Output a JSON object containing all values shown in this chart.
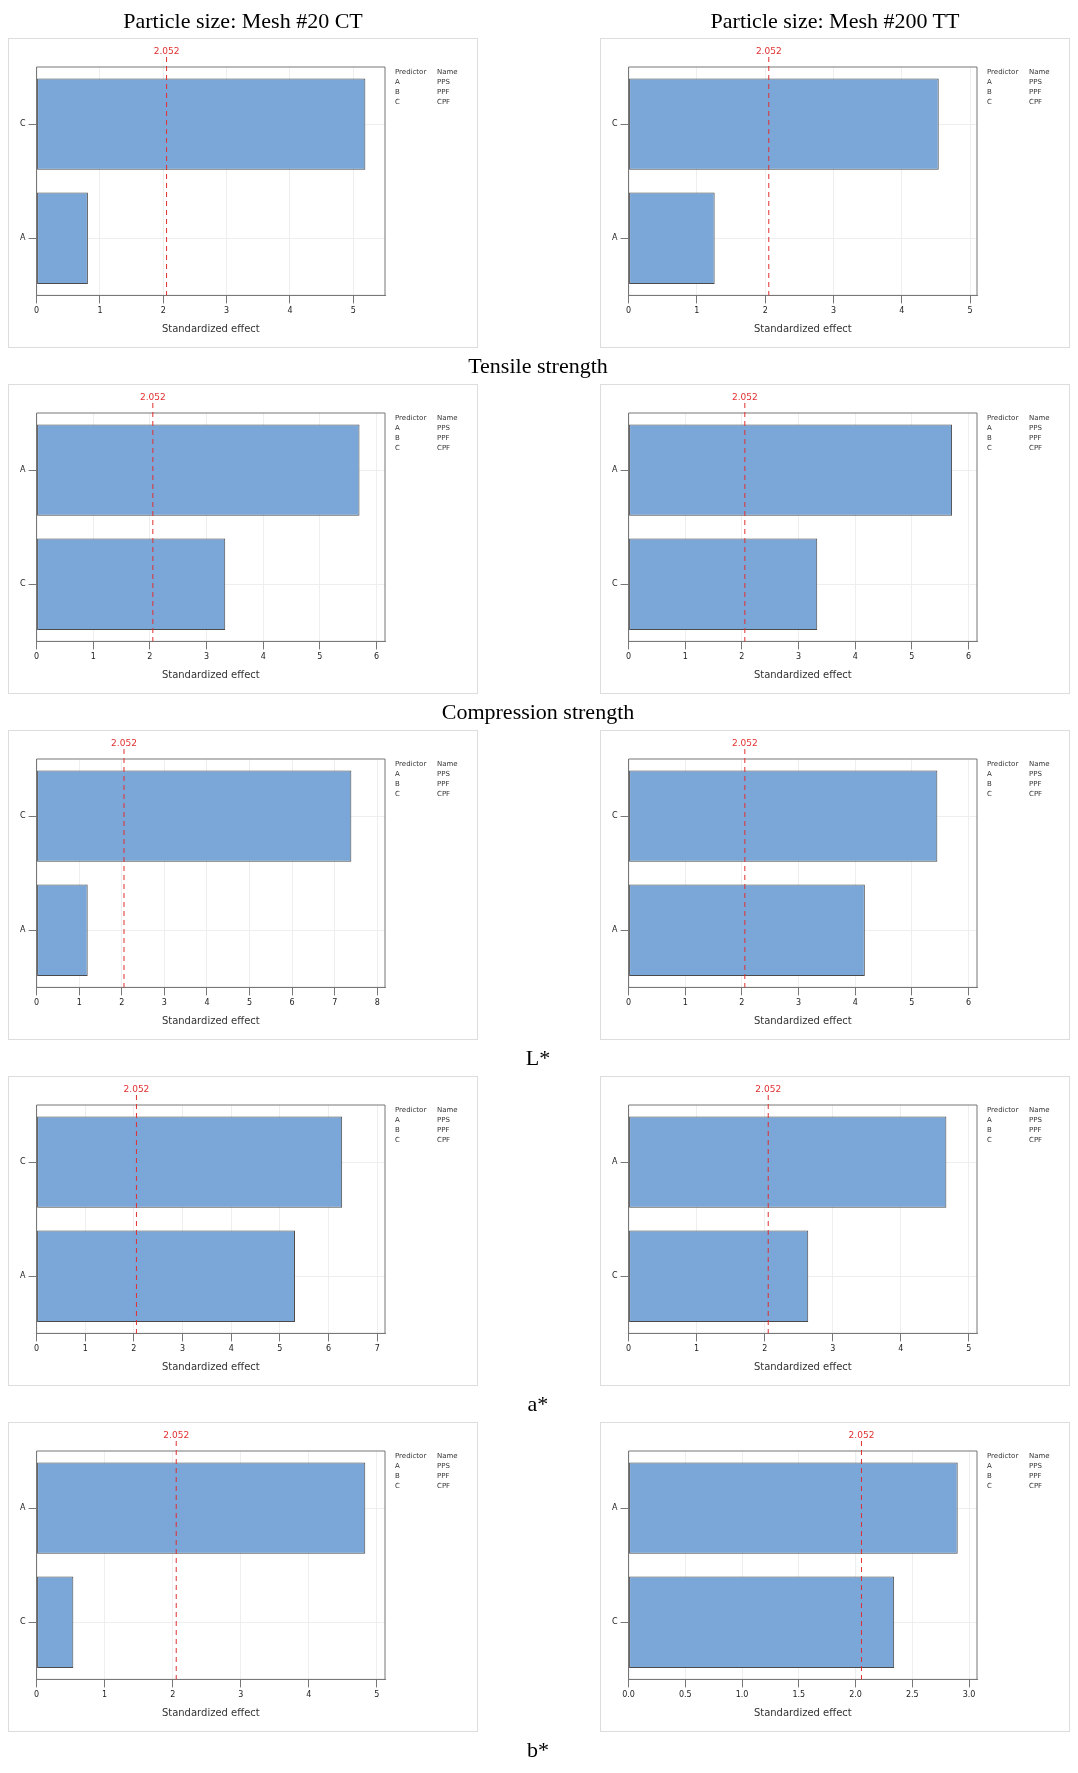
{
  "chart_data": [
    {
      "type": "bar",
      "orientation": "horizontal",
      "title": "Particle size: Mesh #20 CT",
      "categories": [
        "C",
        "A"
      ],
      "values": [
        5.19,
        0.81
      ],
      "color": "#7ba7d8",
      "xlim": [
        0,
        5.5
      ],
      "xticks": [
        0,
        1,
        2,
        3,
        4,
        5
      ],
      "xlabel": "Standardized effect",
      "grid": true,
      "ref_lines": [
        {
          "axis": "x",
          "value": 2.052,
          "label": "2.052",
          "color": "#e03030",
          "line_style": "dashed"
        }
      ],
      "annotations": [
        "Predictor Name",
        "A PPS",
        "B PPF",
        "C CPF",
        "Tensile strength"
      ]
    },
    {
      "type": "bar",
      "orientation": "horizontal",
      "title": "Particle size: Mesh #200 TT",
      "categories": [
        "C",
        "A"
      ],
      "values": [
        4.54,
        1.26
      ],
      "color": "#7ba7d8",
      "xlim": [
        0,
        5.1
      ],
      "xticks": [
        0,
        1,
        2,
        3,
        4,
        5
      ],
      "xlabel": "Standardized effect",
      "grid": true,
      "ref_lines": [
        {
          "axis": "x",
          "value": 2.052,
          "label": "2.052",
          "color": "#e03030",
          "line_style": "dashed"
        }
      ],
      "annotations": [
        "Predictor Name",
        "A PPS",
        "B PPF",
        "C CPF"
      ]
    },
    {
      "type": "bar",
      "orientation": "horizontal",
      "categories": [
        "A",
        "C"
      ],
      "values": [
        5.7,
        3.33
      ],
      "color": "#7ba7d8",
      "xlim": [
        0,
        6.15
      ],
      "xticks": [
        0,
        1,
        2,
        3,
        4,
        5,
        6
      ],
      "xlabel": "Standardized effect",
      "grid": true,
      "ref_lines": [
        {
          "axis": "x",
          "value": 2.052,
          "label": "2.052",
          "color": "#e03030",
          "line_style": "dashed"
        }
      ],
      "annotations": [
        "Predictor Name",
        "A PPS",
        "B PPF",
        "C CPF",
        "Compression strength"
      ]
    },
    {
      "type": "bar",
      "orientation": "horizontal",
      "categories": [
        "A",
        "C"
      ],
      "values": [
        5.71,
        3.33
      ],
      "color": "#7ba7d8",
      "xlim": [
        0,
        6.15
      ],
      "xticks": [
        0,
        1,
        2,
        3,
        4,
        5,
        6
      ],
      "xlabel": "Standardized effect",
      "grid": true,
      "ref_lines": [
        {
          "axis": "x",
          "value": 2.052,
          "label": "2.052",
          "color": "#e03030",
          "line_style": "dashed"
        }
      ],
      "annotations": [
        "Predictor Name",
        "A PPS",
        "B PPF",
        "C CPF"
      ]
    },
    {
      "type": "bar",
      "orientation": "horizontal",
      "categories": [
        "C",
        "A"
      ],
      "values": [
        7.39,
        1.2
      ],
      "color": "#7ba7d8",
      "xlim": [
        0,
        8.18
      ],
      "xticks": [
        0,
        1,
        2,
        3,
        4,
        5,
        6,
        7,
        8
      ],
      "xlabel": "Standardized effect",
      "grid": true,
      "ref_lines": [
        {
          "axis": "x",
          "value": 2.052,
          "label": "2.052",
          "color": "#e03030",
          "line_style": "dashed"
        }
      ],
      "annotations": [
        "Predictor Name",
        "A PPS",
        "B PPF",
        "C CPF",
        "L*"
      ]
    },
    {
      "type": "bar",
      "orientation": "horizontal",
      "categories": [
        "C",
        "A"
      ],
      "values": [
        5.45,
        4.17
      ],
      "color": "#7ba7d8",
      "xlim": [
        0,
        6.15
      ],
      "xticks": [
        0,
        1,
        2,
        3,
        4,
        5,
        6
      ],
      "xlabel": "Standardized effect",
      "grid": true,
      "ref_lines": [
        {
          "axis": "x",
          "value": 2.052,
          "label": "2.052",
          "color": "#e03030",
          "line_style": "dashed"
        }
      ],
      "annotations": [
        "Predictor Name",
        "A PPS",
        "B PPF",
        "C CPF"
      ]
    },
    {
      "type": "bar",
      "orientation": "horizontal",
      "categories": [
        "C",
        "A"
      ],
      "values": [
        6.28,
        5.31
      ],
      "color": "#7ba7d8",
      "xlim": [
        0,
        7.16
      ],
      "xticks": [
        0,
        1,
        2,
        3,
        4,
        5,
        6,
        7
      ],
      "xlabel": "Standardized effect",
      "grid": true,
      "ref_lines": [
        {
          "axis": "x",
          "value": 2.052,
          "label": "2.052",
          "color": "#e03030",
          "line_style": "dashed"
        }
      ],
      "annotations": [
        "Predictor Name",
        "A PPS",
        "B PPF",
        "C CPF",
        "a*"
      ]
    },
    {
      "type": "bar",
      "orientation": "horizontal",
      "categories": [
        "A",
        "C"
      ],
      "values": [
        4.67,
        2.64
      ],
      "color": "#7ba7d8",
      "xlim": [
        0,
        5.12
      ],
      "xticks": [
        0,
        1,
        2,
        3,
        4,
        5
      ],
      "xlabel": "Standardized effect",
      "grid": true,
      "ref_lines": [
        {
          "axis": "x",
          "value": 2.052,
          "label": "2.052",
          "color": "#e03030",
          "line_style": "dashed"
        }
      ],
      "annotations": [
        "Predictor Name",
        "A PPS",
        "B PPF",
        "C CPF"
      ]
    },
    {
      "type": "bar",
      "orientation": "horizontal",
      "categories": [
        "A",
        "C"
      ],
      "values": [
        4.83,
        0.54
      ],
      "color": "#7ba7d8",
      "xlim": [
        0,
        5.12
      ],
      "xticks": [
        0,
        1,
        2,
        3,
        4,
        5
      ],
      "xlabel": "Standardized effect",
      "grid": true,
      "ref_lines": [
        {
          "axis": "x",
          "value": 2.052,
          "label": "2.052",
          "color": "#e03030",
          "line_style": "dashed"
        }
      ],
      "annotations": [
        "Predictor Name",
        "A PPS",
        "B PPF",
        "C CPF",
        "b*"
      ]
    },
    {
      "type": "bar",
      "orientation": "horizontal",
      "categories": [
        "A",
        "C"
      ],
      "values": [
        2.9,
        2.34
      ],
      "color": "#7ba7d8",
      "xlim": [
        0,
        3.07
      ],
      "xticks": [
        {
          "value": 0,
          "label": "0.0"
        },
        {
          "value": 0.5,
          "label": "0.5"
        },
        {
          "value": 1,
          "label": "1.0"
        },
        {
          "value": 1.5,
          "label": "1.5"
        },
        {
          "value": 2,
          "label": "2.0"
        },
        {
          "value": 2.5,
          "label": "2.5"
        },
        {
          "value": 3,
          "label": "3.0"
        }
      ],
      "xlabel": "Standardized effect",
      "grid": true,
      "ref_lines": [
        {
          "axis": "x",
          "value": 2.052,
          "label": "2.052",
          "color": "#e03030",
          "line_style": "dashed"
        }
      ],
      "annotations": [
        "Predictor Name",
        "A PPS",
        "B PPF",
        "C CPF"
      ]
    }
  ]
}
